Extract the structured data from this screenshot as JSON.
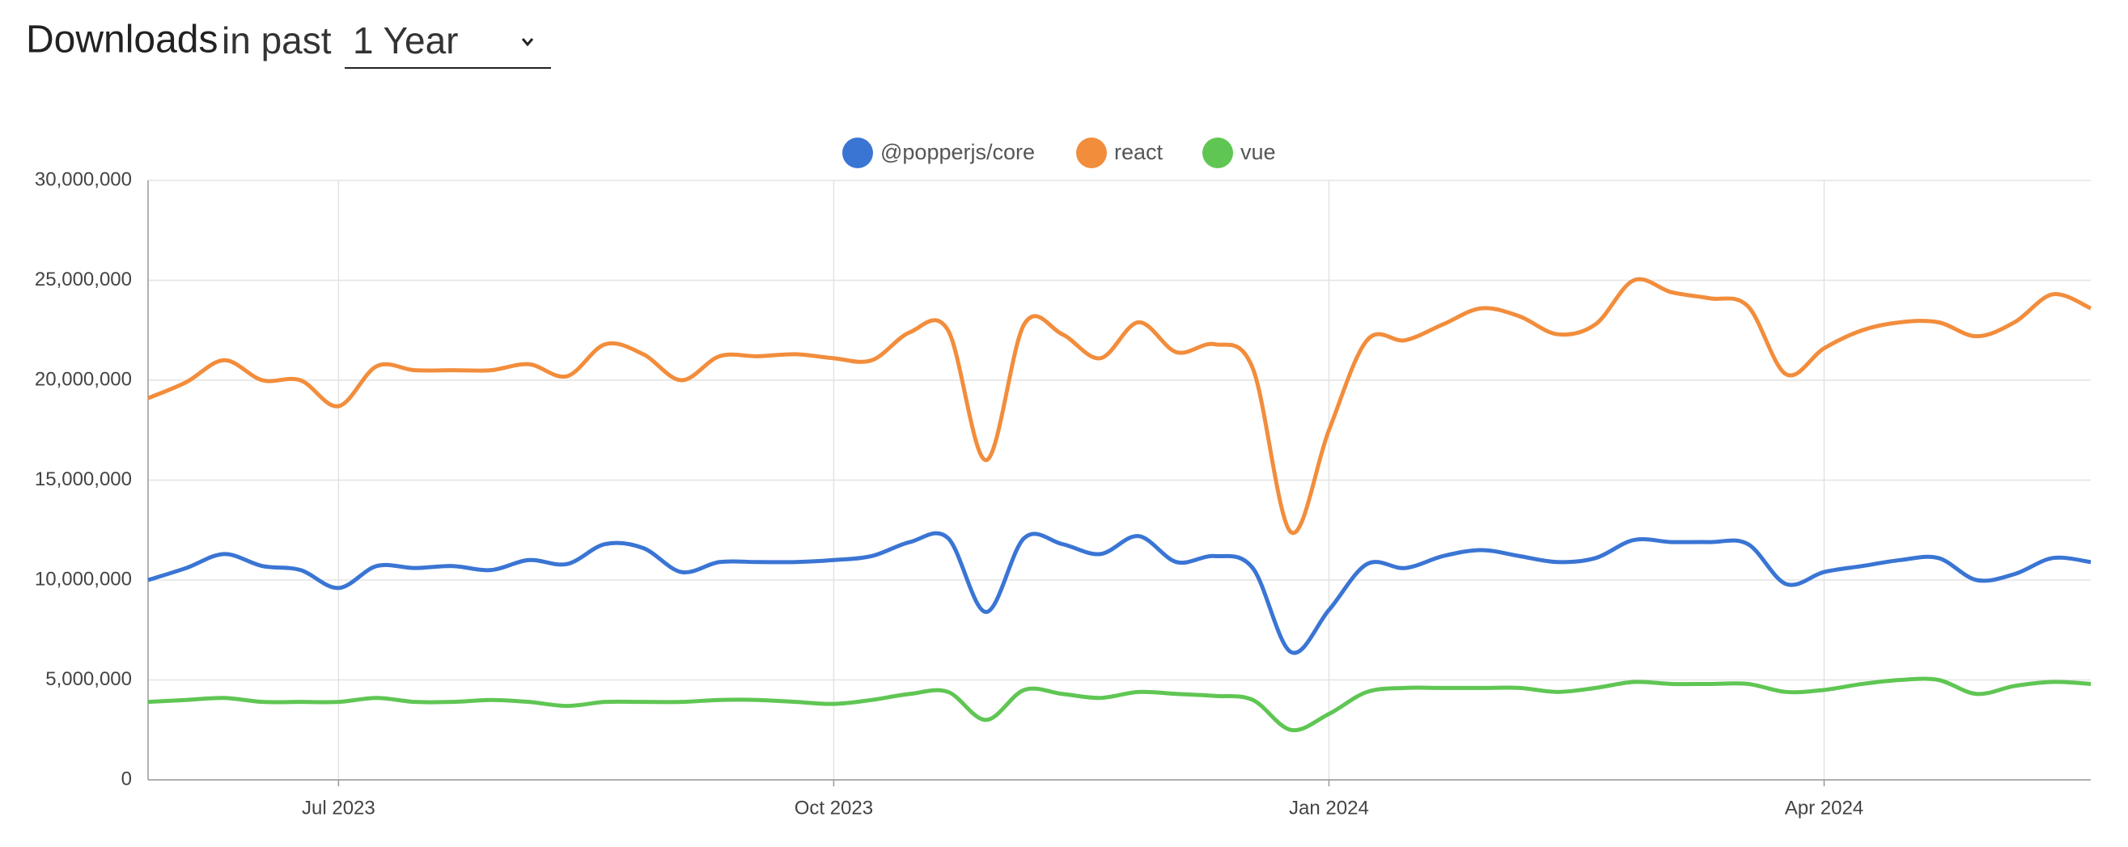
{
  "header": {
    "title": "Downloads",
    "subtitle": "in past",
    "period": "1 Year"
  },
  "chart_data": {
    "type": "line",
    "categories": [
      null,
      null,
      null,
      null,
      null,
      "Jul 2023",
      null,
      null,
      null,
      null,
      null,
      null,
      null,
      null,
      null,
      null,
      null,
      null,
      "Oct 2023",
      null,
      null,
      null,
      null,
      null,
      null,
      null,
      null,
      null,
      null,
      null,
      null,
      "Jan 2024",
      null,
      null,
      null,
      null,
      null,
      null,
      null,
      null,
      null,
      null,
      null,
      null,
      "Apr 2024",
      null,
      null,
      null,
      null,
      null,
      null,
      null
    ],
    "series": [
      {
        "name": "@popperjs/core",
        "color": "#3a75d4",
        "values": [
          10000000,
          10600000,
          11300000,
          10700000,
          10500000,
          9600000,
          10700000,
          10600000,
          10700000,
          10500000,
          11000000,
          10800000,
          11800000,
          11600000,
          10400000,
          10900000,
          10900000,
          10900000,
          11000000,
          11200000,
          11900000,
          12100000,
          8400000,
          12100000,
          11800000,
          11300000,
          12200000,
          10900000,
          11200000,
          10600000,
          6400000,
          8500000,
          10800000,
          10600000,
          11200000,
          11500000,
          11200000,
          10900000,
          11100000,
          12000000,
          11900000,
          11900000,
          11800000,
          9800000,
          10400000,
          10700000,
          11000000,
          11100000,
          10000000,
          10300000,
          11100000,
          10900000
        ]
      },
      {
        "name": "react",
        "color": "#f28d3c",
        "values": [
          19100000,
          19900000,
          21000000,
          20000000,
          20000000,
          18700000,
          20700000,
          20500000,
          20500000,
          20500000,
          20800000,
          20200000,
          21800000,
          21300000,
          20000000,
          21200000,
          21200000,
          21300000,
          21100000,
          21000000,
          22400000,
          22500000,
          16000000,
          22800000,
          22300000,
          21100000,
          22900000,
          21400000,
          21800000,
          20600000,
          12400000,
          17500000,
          22000000,
          22000000,
          22800000,
          23600000,
          23200000,
          22300000,
          22800000,
          25000000,
          24400000,
          24100000,
          23700000,
          20300000,
          21600000,
          22500000,
          22900000,
          22900000,
          22200000,
          22900000,
          24300000,
          23600000
        ]
      },
      {
        "name": "vue",
        "color": "#5fc653",
        "values": [
          3900000,
          4000000,
          4100000,
          3900000,
          3900000,
          3900000,
          4100000,
          3900000,
          3900000,
          4000000,
          3900000,
          3700000,
          3900000,
          3900000,
          3900000,
          4000000,
          4000000,
          3900000,
          3800000,
          4000000,
          4300000,
          4400000,
          3000000,
          4500000,
          4300000,
          4100000,
          4400000,
          4300000,
          4200000,
          4000000,
          2500000,
          3300000,
          4400000,
          4600000,
          4600000,
          4600000,
          4600000,
          4400000,
          4600000,
          4900000,
          4800000,
          4800000,
          4800000,
          4400000,
          4500000,
          4800000,
          5000000,
          5000000,
          4300000,
          4700000,
          4900000,
          4800000
        ]
      }
    ],
    "ylim": [
      0,
      30000000
    ],
    "yticks": [
      0,
      {
        "value": 5000000,
        "label": "5,000,000"
      },
      {
        "value": 10000000,
        "label": "10,000,000"
      },
      {
        "value": 15000000,
        "label": "15,000,000"
      },
      {
        "value": 20000000,
        "label": "20,000,000"
      },
      {
        "value": 25000000,
        "label": "25,000,000"
      },
      {
        "value": 30000000,
        "label": "30,000,000"
      }
    ],
    "grid": true
  }
}
